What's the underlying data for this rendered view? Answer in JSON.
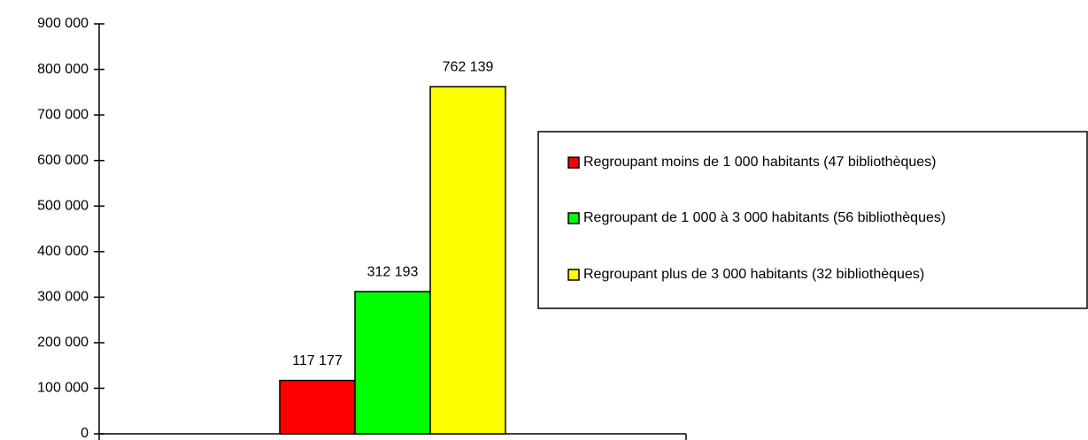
{
  "chart_data": {
    "type": "bar",
    "categories": [
      null
    ],
    "series": [
      {
        "name": "Regroupant moins de 1 000 habitants (47 bibliothèques)",
        "color": "#ff0000",
        "values": [
          117177
        ],
        "value_labels": [
          "117 177"
        ]
      },
      {
        "name": "Regroupant de 1 000 à 3 000 habitants (56 bibliothèques)",
        "color": "#00ff00",
        "values": [
          312193
        ],
        "value_labels": [
          "312 193"
        ]
      },
      {
        "name": "Regroupant plus de 3 000 habitants (32 bibliothèques)",
        "color": "#ffff00",
        "values": [
          762139
        ],
        "value_labels": [
          "762 139"
        ]
      }
    ],
    "ylim": [
      0,
      900000
    ],
    "yticks": [
      0,
      {
        "value": 100000,
        "label": "100 000"
      },
      {
        "value": 200000,
        "label": "200 000"
      },
      {
        "value": 300000,
        "label": "300 000"
      },
      {
        "value": 400000,
        "label": "400 000"
      },
      {
        "value": 500000,
        "label": "500 000"
      },
      {
        "value": 600000,
        "label": "600 000"
      },
      {
        "value": 700000,
        "label": "700 000"
      },
      {
        "value": 800000,
        "label": "800 000"
      },
      {
        "value": 900000,
        "label": "900 000"
      }
    ],
    "legend": "right"
  }
}
